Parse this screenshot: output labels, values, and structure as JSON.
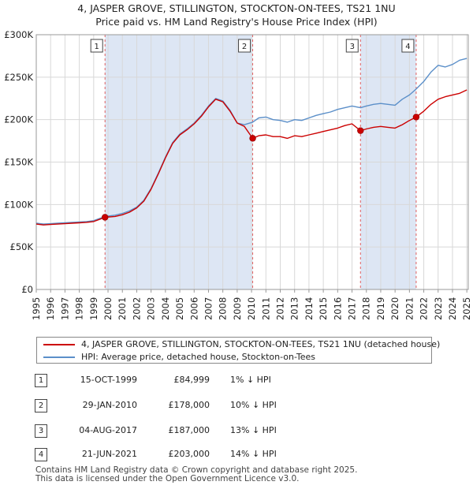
{
  "title_line1": "4, JASPER GROVE, STILLINGTON, STOCKTON-ON-TEES, TS21 1NU",
  "title_line2": "Price paid vs. HM Land Registry's House Price Index (HPI)",
  "colors": {
    "property": "#cc0000",
    "hpi": "#5b8fc9",
    "shade": "#dde6f4",
    "grid": "#d8d8d8",
    "marker_line": "#e06060"
  },
  "legend": {
    "property_label": "4, JASPER GROVE, STILLINGTON, STOCKTON-ON-TEES, TS21 1NU (detached house)",
    "hpi_label": "HPI: Average price, detached house, Stockton-on-Tees"
  },
  "sales": [
    {
      "num": "1",
      "date": "15-OCT-1999",
      "price": "£84,999",
      "hpi": "1% ↓ HPI"
    },
    {
      "num": "2",
      "date": "29-JAN-2010",
      "price": "£178,000",
      "hpi": "10% ↓ HPI"
    },
    {
      "num": "3",
      "date": "04-AUG-2017",
      "price": "£187,000",
      "hpi": "13% ↓ HPI"
    },
    {
      "num": "4",
      "date": "21-JUN-2021",
      "price": "£203,000",
      "hpi": "14% ↓ HPI"
    }
  ],
  "footer": {
    "line1": "Contains HM Land Registry data © Crown copyright and database right 2025.",
    "line2": "This data is licensed under the Open Government Licence v3.0."
  },
  "chart_data": {
    "type": "line",
    "title": "Price paid vs. HM Land Registry's House Price Index (HPI)",
    "xlim": [
      1995,
      2025.1
    ],
    "ylim": [
      0,
      300000
    ],
    "x_ticks": [
      "1995",
      "1996",
      "1997",
      "1998",
      "1999",
      "2000",
      "2001",
      "2002",
      "2003",
      "2004",
      "2005",
      "2006",
      "2007",
      "2008",
      "2009",
      "2010",
      "2011",
      "2012",
      "2013",
      "2014",
      "2015",
      "2016",
      "2017",
      "2018",
      "2019",
      "2020",
      "2021",
      "2022",
      "2023",
      "2024",
      "2025"
    ],
    "y_ticks": [
      {
        "value": 0,
        "label": "£0"
      },
      {
        "value": 50000,
        "label": "£50K"
      },
      {
        "value": 100000,
        "label": "£100K"
      },
      {
        "value": 150000,
        "label": "£150K"
      },
      {
        "value": 200000,
        "label": "£200K"
      },
      {
        "value": 250000,
        "label": "£250K"
      },
      {
        "value": 300000,
        "label": "£300K"
      }
    ],
    "shaded_periods": [
      [
        1999.79,
        2010.08
      ],
      [
        2017.59,
        2021.47
      ]
    ],
    "markers": [
      {
        "label": "1",
        "x": 1999.79,
        "price": 84999
      },
      {
        "label": "2",
        "x": 2010.08,
        "price": 178000
      },
      {
        "label": "3",
        "x": 2017.59,
        "price": 187000
      },
      {
        "label": "4",
        "x": 2021.47,
        "price": 203000
      }
    ],
    "series": [
      {
        "name": "4, JASPER GROVE, STILLINGTON, STOCKTON-ON-TEES, TS21 1NU (detached house)",
        "points": [
          [
            1995.0,
            77000
          ],
          [
            1995.5,
            76000
          ],
          [
            1996.0,
            76500
          ],
          [
            1996.5,
            77000
          ],
          [
            1997.0,
            77500
          ],
          [
            1997.5,
            78000
          ],
          [
            1998.0,
            78500
          ],
          [
            1998.5,
            79000
          ],
          [
            1999.0,
            80000
          ],
          [
            1999.79,
            84999
          ],
          [
            2000.5,
            86000
          ],
          [
            2001.0,
            88000
          ],
          [
            2001.5,
            91000
          ],
          [
            2002.0,
            96000
          ],
          [
            2002.5,
            104000
          ],
          [
            2003.0,
            118000
          ],
          [
            2003.5,
            136000
          ],
          [
            2004.0,
            155000
          ],
          [
            2004.5,
            172000
          ],
          [
            2005.0,
            182000
          ],
          [
            2005.5,
            188000
          ],
          [
            2006.0,
            195000
          ],
          [
            2006.5,
            204000
          ],
          [
            2007.0,
            215000
          ],
          [
            2007.5,
            224000
          ],
          [
            2008.0,
            221000
          ],
          [
            2008.5,
            210000
          ],
          [
            2009.0,
            196000
          ],
          [
            2009.5,
            192000
          ],
          [
            2010.08,
            178000
          ],
          [
            2010.5,
            181000
          ],
          [
            2011.0,
            182000
          ],
          [
            2011.5,
            180000
          ],
          [
            2012.0,
            180000
          ],
          [
            2012.5,
            178000
          ],
          [
            2013.0,
            181000
          ],
          [
            2013.5,
            180000
          ],
          [
            2014.0,
            182000
          ],
          [
            2014.5,
            184000
          ],
          [
            2015.0,
            186000
          ],
          [
            2015.5,
            188000
          ],
          [
            2016.0,
            190000
          ],
          [
            2016.5,
            193000
          ],
          [
            2017.0,
            195000
          ],
          [
            2017.59,
            187000
          ],
          [
            2018.0,
            189000
          ],
          [
            2018.5,
            191000
          ],
          [
            2019.0,
            192000
          ],
          [
            2019.5,
            191000
          ],
          [
            2020.0,
            190000
          ],
          [
            2020.5,
            194000
          ],
          [
            2021.0,
            199000
          ],
          [
            2021.47,
            203000
          ],
          [
            2022.0,
            210000
          ],
          [
            2022.5,
            218000
          ],
          [
            2023.0,
            224000
          ],
          [
            2023.5,
            227000
          ],
          [
            2024.0,
            229000
          ],
          [
            2024.5,
            231000
          ],
          [
            2025.0,
            235000
          ]
        ]
      },
      {
        "name": "HPI: Average price, detached house, Stockton-on-Tees",
        "points": [
          [
            1995.0,
            78000
          ],
          [
            1995.5,
            77000
          ],
          [
            1996.0,
            77500
          ],
          [
            1996.5,
            78000
          ],
          [
            1997.0,
            78500
          ],
          [
            1997.5,
            79000
          ],
          [
            1998.0,
            79500
          ],
          [
            1998.5,
            80000
          ],
          [
            1999.0,
            81000
          ],
          [
            1999.79,
            86000
          ],
          [
            2000.5,
            87500
          ],
          [
            2001.0,
            89500
          ],
          [
            2001.5,
            92500
          ],
          [
            2002.0,
            97000
          ],
          [
            2002.5,
            105000
          ],
          [
            2003.0,
            119000
          ],
          [
            2003.5,
            137000
          ],
          [
            2004.0,
            156000
          ],
          [
            2004.5,
            173000
          ],
          [
            2005.0,
            183000
          ],
          [
            2005.5,
            189000
          ],
          [
            2006.0,
            196000
          ],
          [
            2006.5,
            205000
          ],
          [
            2007.0,
            216000
          ],
          [
            2007.5,
            225000
          ],
          [
            2008.0,
            222000
          ],
          [
            2008.5,
            211000
          ],
          [
            2009.0,
            196000
          ],
          [
            2009.5,
            194000
          ],
          [
            2010.08,
            197000
          ],
          [
            2010.5,
            202000
          ],
          [
            2011.0,
            203000
          ],
          [
            2011.5,
            200000
          ],
          [
            2012.0,
            199000
          ],
          [
            2012.5,
            197000
          ],
          [
            2013.0,
            200000
          ],
          [
            2013.5,
            199000
          ],
          [
            2014.0,
            202000
          ],
          [
            2014.5,
            205000
          ],
          [
            2015.0,
            207000
          ],
          [
            2015.5,
            209000
          ],
          [
            2016.0,
            212000
          ],
          [
            2016.5,
            214000
          ],
          [
            2017.0,
            216000
          ],
          [
            2017.59,
            214000
          ],
          [
            2018.0,
            216000
          ],
          [
            2018.5,
            218000
          ],
          [
            2019.0,
            219000
          ],
          [
            2019.5,
            218000
          ],
          [
            2020.0,
            217000
          ],
          [
            2020.5,
            224000
          ],
          [
            2021.0,
            229000
          ],
          [
            2021.47,
            236000
          ],
          [
            2022.0,
            245000
          ],
          [
            2022.5,
            256000
          ],
          [
            2023.0,
            264000
          ],
          [
            2023.5,
            262000
          ],
          [
            2024.0,
            265000
          ],
          [
            2024.5,
            270000
          ],
          [
            2025.0,
            272000
          ]
        ]
      }
    ]
  }
}
